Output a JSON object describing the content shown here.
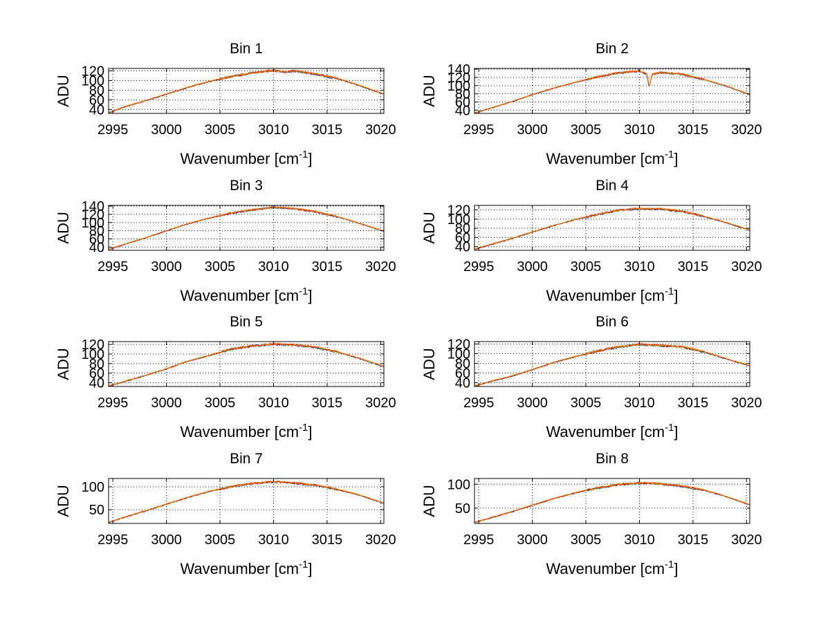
{
  "chart_data": {
    "type": "line",
    "layout": "4x2 grid",
    "series_colors": [
      "#0000ff",
      "#00a000",
      "#ff0000",
      "#ff8000"
    ],
    "panels": [
      {
        "title": "Bin 1",
        "xlabel": "Wavenumber [cm",
        "xlabel_superscript": "-1",
        "xlabel_suffix": "]",
        "ylabel": "ADU",
        "xlim": [
          2994.6,
          3020.3
        ],
        "ylim": [
          32,
          125
        ],
        "xticks": [
          2995,
          3000,
          3005,
          3010,
          3015,
          3020
        ],
        "xtick_labels": [
          "2995",
          "3000",
          "3005",
          "3010",
          "3015",
          "3020"
        ],
        "yticks": [
          40,
          60,
          80,
          100,
          120
        ],
        "ytick_labels": [
          "40",
          "60",
          "80",
          "100",
          "120"
        ],
        "grid": true,
        "x": [
          2994.6,
          2996,
          2998,
          3000,
          3002,
          3004,
          3006,
          3008,
          3010,
          3011,
          3012,
          3014,
          3016,
          3018,
          3020.3
        ],
        "y": [
          33,
          45,
          58,
          72,
          86,
          98,
          108,
          116,
          121,
          118,
          120,
          113,
          104,
          90,
          72
        ]
      },
      {
        "title": "Bin 2",
        "xlabel": "Wavenumber [cm",
        "xlabel_superscript": "-1",
        "xlabel_suffix": "]",
        "ylabel": "ADU",
        "xlim": [
          2994.6,
          3020.3
        ],
        "ylim": [
          32,
          142
        ],
        "xticks": [
          2995,
          3000,
          3005,
          3010,
          3015,
          3020
        ],
        "xtick_labels": [
          "2995",
          "3000",
          "3005",
          "3010",
          "3015",
          "3020"
        ],
        "yticks": [
          40,
          60,
          80,
          100,
          120,
          140
        ],
        "ytick_labels": [
          "40",
          "60",
          "80",
          "100",
          "120",
          "140"
        ],
        "grid": true,
        "x": [
          2994.6,
          2996,
          2998,
          3000,
          3002,
          3004,
          3006,
          3008,
          3010,
          3010.7,
          3010.9,
          3011.2,
          3012,
          3014,
          3016,
          3018,
          3020.3
        ],
        "y": [
          33,
          44,
          60,
          78,
          94,
          108,
          121,
          131,
          136,
          128,
          97,
          128,
          132,
          128,
          115,
          100,
          78
        ]
      },
      {
        "title": "Bin 3",
        "xlabel": "Wavenumber [cm",
        "xlabel_superscript": "-1",
        "xlabel_suffix": "]",
        "ylabel": "ADU",
        "xlim": [
          2994.6,
          3020.3
        ],
        "ylim": [
          32,
          142
        ],
        "xticks": [
          2995,
          3000,
          3005,
          3010,
          3015,
          3020
        ],
        "xtick_labels": [
          "2995",
          "3000",
          "3005",
          "3010",
          "3015",
          "3020"
        ],
        "yticks": [
          40,
          60,
          80,
          100,
          120,
          140
        ],
        "ytick_labels": [
          "40",
          "60",
          "80",
          "100",
          "120",
          "140"
        ],
        "grid": true,
        "x": [
          2994.6,
          2996,
          2998,
          3000,
          3002,
          3004,
          3006,
          3008,
          3010,
          3012,
          3014,
          3016,
          3018,
          3020.3
        ],
        "y": [
          34,
          46,
          62,
          80,
          97,
          111,
          123,
          131,
          137,
          134,
          126,
          114,
          98,
          79
        ]
      },
      {
        "title": "Bin 4",
        "xlabel": "Wavenumber [cm",
        "xlabel_superscript": "-1",
        "xlabel_suffix": "]",
        "ylabel": "ADU",
        "xlim": [
          2994.6,
          3020.3
        ],
        "ylim": [
          32,
          130
        ],
        "xticks": [
          2995,
          3000,
          3005,
          3010,
          3015,
          3020
        ],
        "xtick_labels": [
          "2995",
          "3000",
          "3005",
          "3010",
          "3015",
          "3020"
        ],
        "yticks": [
          40,
          60,
          80,
          100,
          120
        ],
        "ytick_labels": [
          "40",
          "60",
          "80",
          "100",
          "120"
        ],
        "grid": true,
        "x": [
          2994.6,
          2996,
          2998,
          3000,
          3002,
          3004,
          3006,
          3008,
          3010,
          3012,
          3014,
          3016,
          3018,
          3020.3
        ],
        "y": [
          34,
          44,
          57,
          72,
          86,
          99,
          110,
          119,
          123,
          122,
          117,
          106,
          93,
          76
        ]
      },
      {
        "title": "Bin 5",
        "xlabel": "Wavenumber [cm",
        "xlabel_superscript": "-1",
        "xlabel_suffix": "]",
        "ylabel": "ADU",
        "xlim": [
          2994.6,
          3020.3
        ],
        "ylim": [
          32,
          126
        ],
        "xticks": [
          2995,
          3000,
          3005,
          3010,
          3015,
          3020
        ],
        "xtick_labels": [
          "2995",
          "3000",
          "3005",
          "3010",
          "3015",
          "3020"
        ],
        "yticks": [
          40,
          60,
          80,
          100,
          120
        ],
        "ytick_labels": [
          "40",
          "60",
          "80",
          "100",
          "120"
        ],
        "grid": true,
        "x": [
          2994.6,
          2996,
          2998,
          3000,
          3002,
          3004,
          3006,
          3008,
          3010,
          3012,
          3014,
          3016,
          3018,
          3020.3
        ],
        "y": [
          33,
          42,
          55,
          69,
          85,
          97,
          110,
          117,
          121,
          119,
          114,
          104,
          91,
          74
        ]
      },
      {
        "title": "Bin 6",
        "xlabel": "Wavenumber [cm",
        "xlabel_superscript": "-1",
        "xlabel_suffix": "]",
        "ylabel": "ADU",
        "xlim": [
          2994.6,
          3020.3
        ],
        "ylim": [
          32,
          125
        ],
        "xticks": [
          2995,
          3000,
          3005,
          3010,
          3015,
          3020
        ],
        "xtick_labels": [
          "2995",
          "3000",
          "3005",
          "3010",
          "3015",
          "3020"
        ],
        "yticks": [
          40,
          60,
          80,
          100,
          120
        ],
        "ytick_labels": [
          "40",
          "60",
          "80",
          "100",
          "120"
        ],
        "grid": true,
        "x": [
          2994.6,
          2996,
          2998,
          3000,
          3002,
          3004,
          3006,
          3008,
          3010,
          3012,
          3014,
          3016,
          3018,
          3020.3
        ],
        "y": [
          33,
          42,
          53,
          67,
          82,
          94,
          105,
          114,
          119,
          117,
          114,
          104,
          90,
          75
        ]
      },
      {
        "title": "Bin 7",
        "xlabel": "Wavenumber [cm",
        "xlabel_superscript": "-1",
        "xlabel_suffix": "]",
        "ylabel": "ADU",
        "xlim": [
          2994.6,
          3020.3
        ],
        "ylim": [
          20,
          118
        ],
        "xticks": [
          2995,
          3000,
          3005,
          3010,
          3015,
          3020
        ],
        "xtick_labels": [
          "2995",
          "3000",
          "3005",
          "3010",
          "3015",
          "3020"
        ],
        "yticks": [
          50,
          100
        ],
        "ytick_labels": [
          "50",
          "100"
        ],
        "grid": true,
        "x": [
          2994.6,
          2996,
          2998,
          3000,
          3002,
          3004,
          3006,
          3008,
          3010,
          3012,
          3014,
          3016,
          3018,
          3020.3
        ],
        "y": [
          22,
          33,
          47,
          62,
          77,
          90,
          100,
          107,
          111,
          108,
          103,
          94,
          82,
          64
        ]
      },
      {
        "title": "Bin 8",
        "xlabel": "Wavenumber [cm",
        "xlabel_superscript": "-1",
        "xlabel_suffix": "]",
        "ylabel": "ADU",
        "xlim": [
          2994.6,
          3020.3
        ],
        "ylim": [
          18,
          112
        ],
        "xticks": [
          2995,
          3000,
          3005,
          3010,
          3015,
          3020
        ],
        "xtick_labels": [
          "2995",
          "3000",
          "3005",
          "3010",
          "3015",
          "3020"
        ],
        "yticks": [
          50,
          100
        ],
        "ytick_labels": [
          "50",
          "100"
        ],
        "grid": true,
        "x": [
          2994.6,
          2996,
          2998,
          3000,
          3002,
          3004,
          3006,
          3008,
          3010,
          3012,
          3014,
          3016,
          3018,
          3020.3
        ],
        "y": [
          20,
          29,
          42,
          56,
          70,
          82,
          92,
          99,
          103,
          101,
          96,
          88,
          75,
          57
        ]
      }
    ]
  }
}
